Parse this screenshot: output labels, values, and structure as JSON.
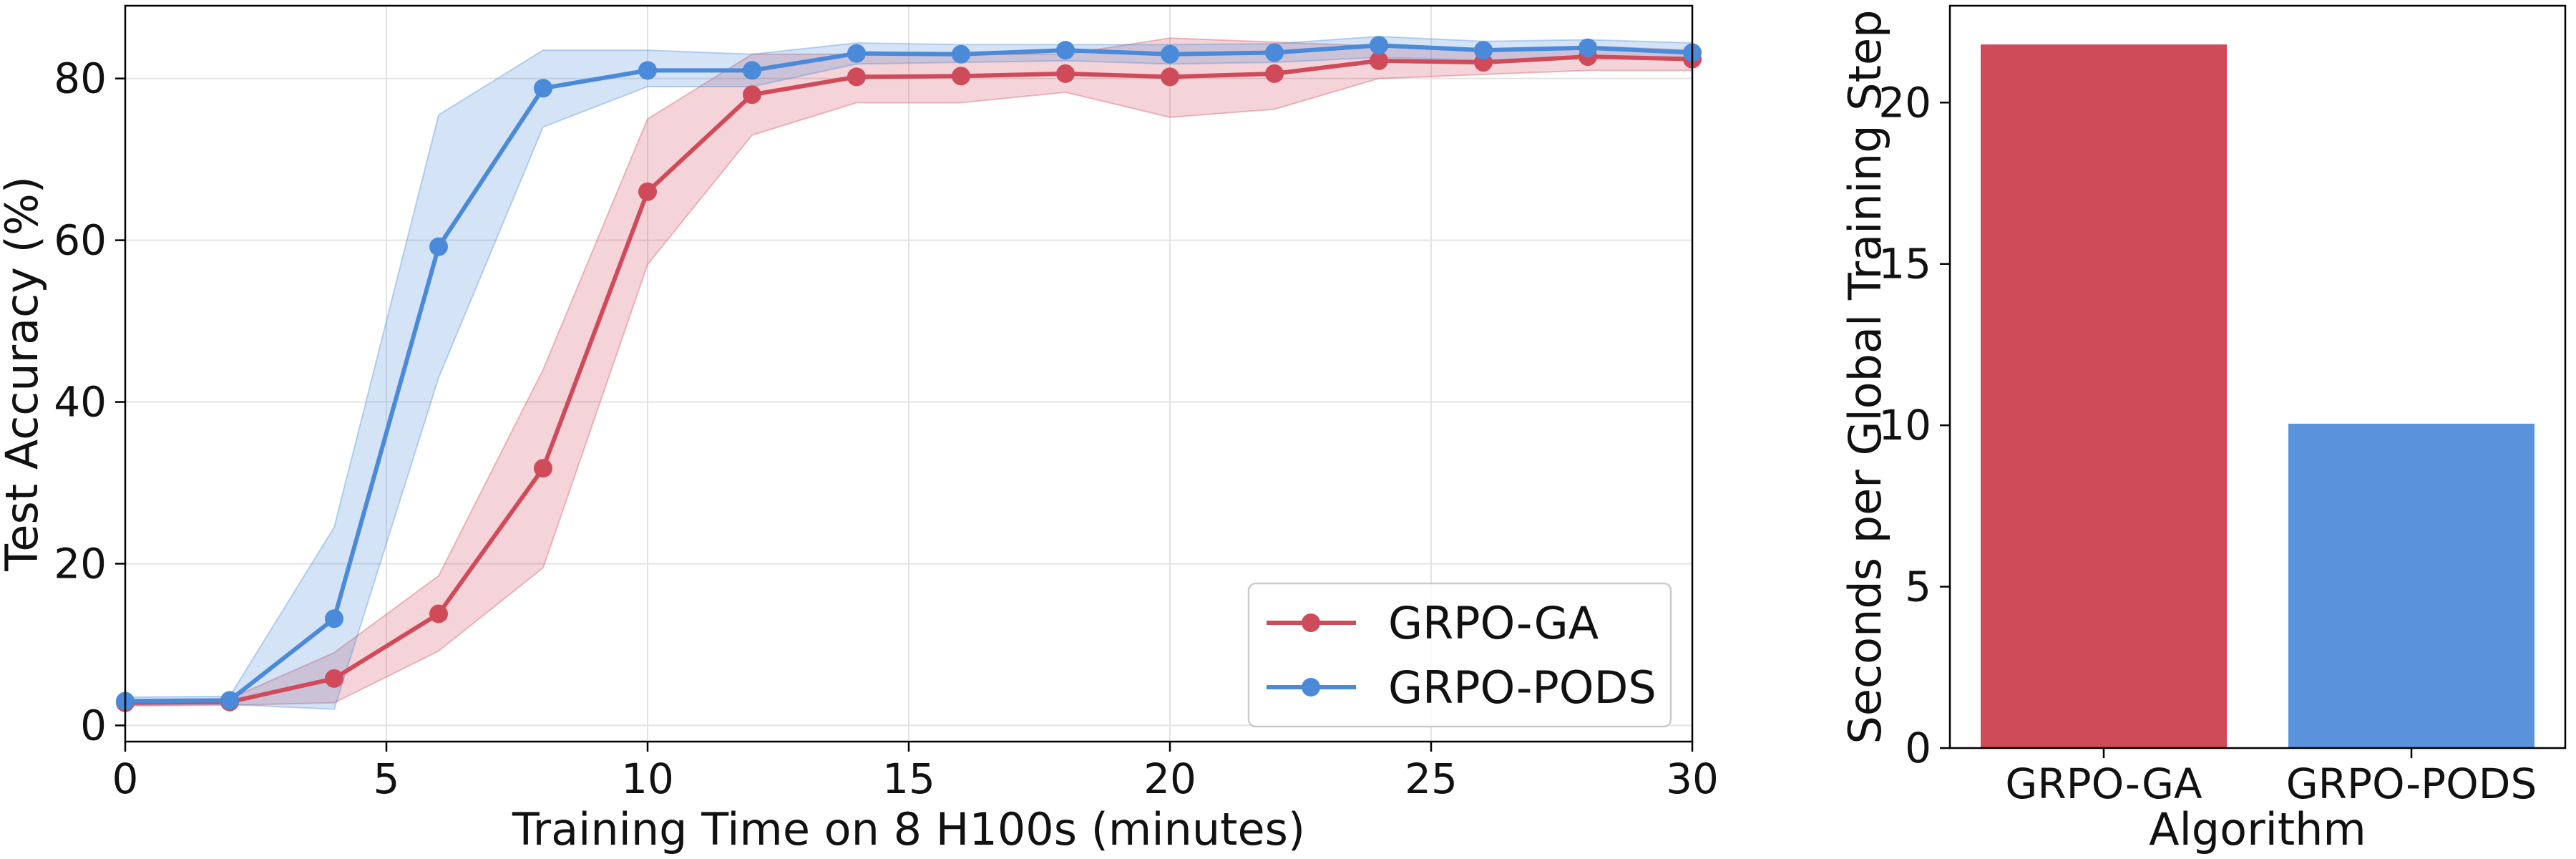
{
  "chart_data": [
    {
      "type": "line",
      "title": "",
      "xlabel": "Training Time on 8 H100s (minutes)",
      "ylabel": "Test Accuracy (%)",
      "xlim": [
        0,
        30
      ],
      "ylim": [
        -2,
        89
      ],
      "xticks": [
        0,
        5,
        10,
        15,
        20,
        25,
        30
      ],
      "yticks": [
        0,
        20,
        40,
        60,
        80
      ],
      "grid": true,
      "legend_position": "lower-right",
      "x": [
        0,
        2,
        4,
        6,
        8,
        10,
        12,
        14,
        16,
        18,
        20,
        22,
        24,
        26,
        28,
        30
      ],
      "series": [
        {
          "name": "GRPO-GA",
          "color": "#d04b5a",
          "values": [
            2.8,
            2.9,
            5.8,
            13.8,
            31.8,
            66.0,
            78.0,
            80.2,
            80.3,
            80.6,
            80.2,
            80.6,
            82.2,
            82.0,
            82.7,
            82.4
          ],
          "lower": [
            2.4,
            2.5,
            2.8,
            9.2,
            19.5,
            57.0,
            73.0,
            77.0,
            77.0,
            78.3,
            75.2,
            76.2,
            80.0,
            80.5,
            81.0,
            81.0
          ],
          "upper": [
            3.2,
            3.3,
            9.0,
            18.5,
            44.0,
            75.0,
            83.0,
            83.0,
            83.0,
            83.0,
            85.0,
            84.5,
            84.0,
            83.5,
            84.0,
            83.5
          ]
        },
        {
          "name": "GRPO-PODS",
          "color": "#4a8ad8",
          "values": [
            3.0,
            3.1,
            13.2,
            59.2,
            78.8,
            81.0,
            81.0,
            83.1,
            83.0,
            83.5,
            83.0,
            83.2,
            84.1,
            83.5,
            83.8,
            83.2
          ],
          "lower": [
            2.5,
            2.6,
            2.0,
            43.0,
            74.0,
            79.0,
            79.0,
            81.8,
            82.0,
            82.2,
            81.8,
            82.0,
            82.6,
            82.3,
            82.6,
            82.2
          ],
          "upper": [
            3.5,
            3.6,
            24.5,
            75.5,
            83.5,
            83.5,
            83.0,
            84.4,
            84.2,
            84.2,
            84.2,
            84.3,
            85.2,
            84.6,
            84.8,
            84.4
          ]
        }
      ]
    },
    {
      "type": "bar",
      "title": "",
      "xlabel": "Algorithm",
      "ylabel": "Seconds per Global Training Step",
      "categories": [
        "GRPO-GA",
        "GRPO-PODS"
      ],
      "values": [
        21.8,
        10.05
      ],
      "colors": [
        "#d04b5a",
        "#5a93db"
      ],
      "ylim": [
        0,
        23
      ],
      "yticks": [
        0,
        5,
        10,
        15,
        20
      ],
      "grid": false
    }
  ]
}
